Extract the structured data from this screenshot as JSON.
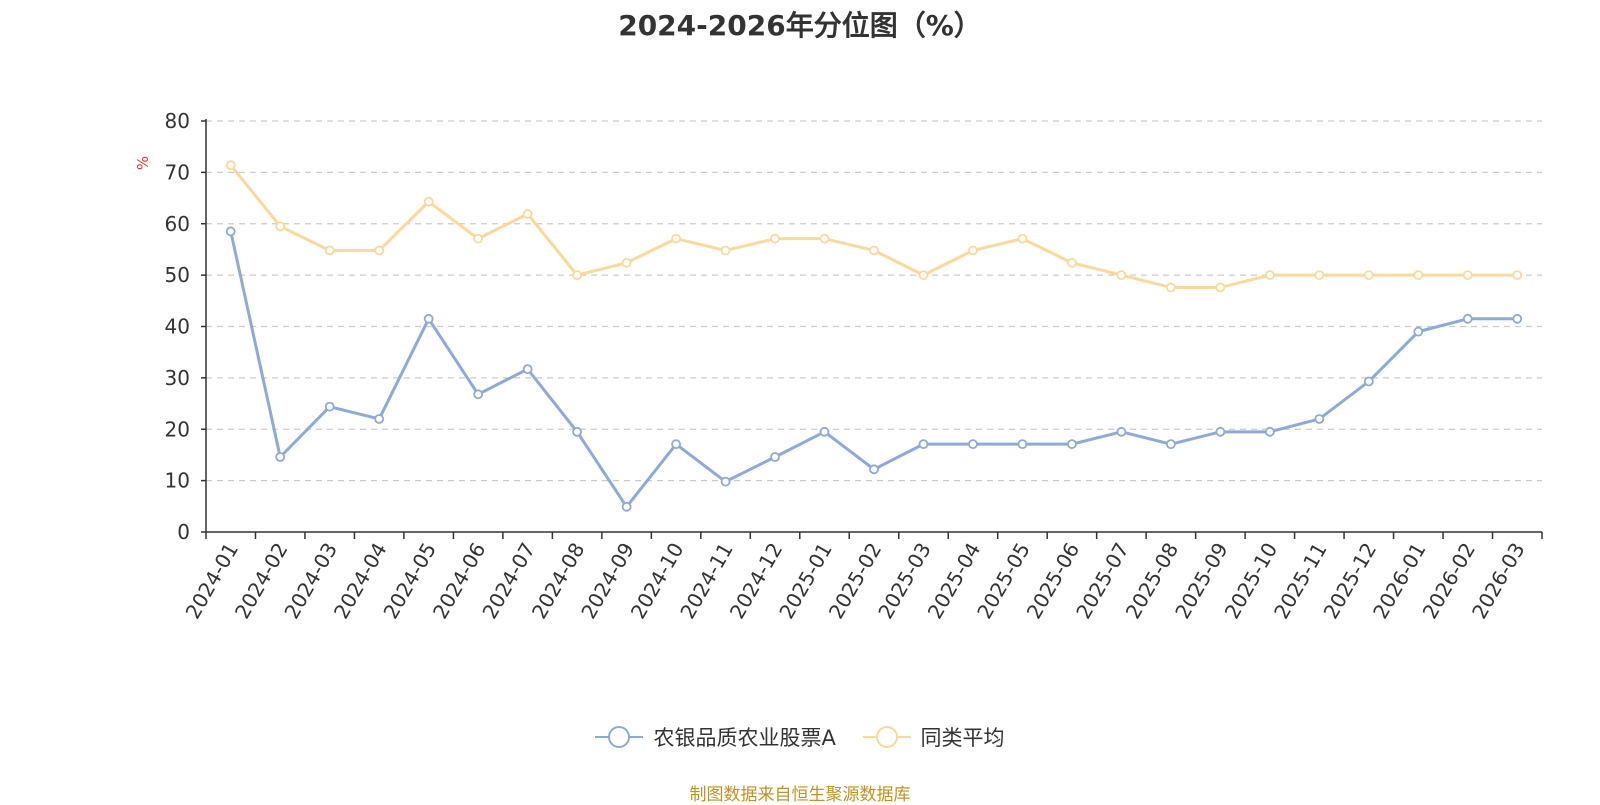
{
  "chart_data": {
    "type": "line",
    "title": "2024-2026年分位图（%）",
    "y_unit": "%",
    "ylim": [
      0,
      80
    ],
    "yticks": [
      0,
      10,
      20,
      30,
      40,
      50,
      60,
      70,
      80
    ],
    "grid": "horizontal dashed",
    "legend_position": "bottom-center",
    "categories": [
      "2024-01",
      "2024-02",
      "2024-03",
      "2024-04",
      "2024-05",
      "2024-06",
      "2024-07",
      "2024-08",
      "2024-09",
      "2024-10",
      "2024-11",
      "2024-12",
      "2025-01",
      "2025-02",
      "2025-03",
      "2025-04",
      "2025-05",
      "2025-06",
      "2025-07",
      "2025-08",
      "2025-09",
      "2025-10",
      "2025-11",
      "2025-12",
      "2026-01",
      "2026-02",
      "2026-03"
    ],
    "series": [
      {
        "name": "农银品质农业股票A",
        "color": "#8eaadb",
        "values": [
          58.5,
          14.6,
          24.4,
          22.0,
          41.5,
          26.8,
          31.7,
          19.5,
          4.9,
          17.1,
          9.8,
          14.6,
          19.5,
          12.2,
          17.1,
          17.1,
          17.1,
          17.1,
          19.5,
          17.1,
          19.5,
          19.5,
          22.0,
          29.3,
          39.0,
          41.5,
          41.5
        ]
      },
      {
        "name": "同类平均",
        "color": "#fbd99a",
        "values": [
          71.4,
          59.5,
          54.8,
          54.8,
          64.3,
          57.1,
          61.9,
          50.0,
          52.4,
          57.1,
          54.8,
          57.1,
          57.1,
          54.8,
          50.0,
          54.8,
          57.1,
          52.4,
          50.0,
          47.6,
          47.6,
          50.0,
          50.0,
          50.0,
          50.0,
          50.0,
          50.0
        ]
      }
    ]
  },
  "footer": {
    "source": "制图数据来自恒生聚源数据库"
  }
}
